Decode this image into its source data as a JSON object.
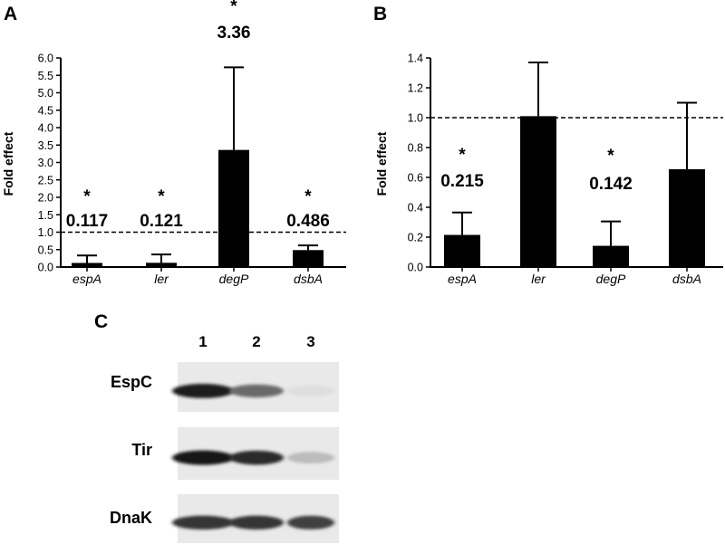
{
  "panels": {
    "a": {
      "letter": "A"
    },
    "b": {
      "letter": "B"
    },
    "c": {
      "letter": "C"
    }
  },
  "chart_data": [
    {
      "type": "bar",
      "panel": "A",
      "ylabel": "Fold effect",
      "categories": [
        "espA",
        "ler",
        "degP",
        "dsbA"
      ],
      "values": [
        0.117,
        0.121,
        3.36,
        0.486
      ],
      "error_upper": [
        0.33,
        0.36,
        5.73,
        0.62
      ],
      "ylim": [
        0,
        6.0
      ],
      "yticks": [
        "0.0",
        "0.5",
        "1.0",
        "1.5",
        "2.0",
        "2.5",
        "3.0",
        "3.5",
        "4.0",
        "4.5",
        "5.0",
        "5.5",
        "6.0"
      ],
      "reference_line": 1.0,
      "significance": [
        "*",
        "*",
        "*",
        "*"
      ],
      "value_labels": [
        "0.117",
        "0.121",
        "3.36",
        "0.486"
      ],
      "bar_color": "#000000"
    },
    {
      "type": "bar",
      "panel": "B",
      "ylabel": "Fold effect",
      "categories": [
        "espA",
        "ler",
        "degP",
        "dsbA"
      ],
      "values": [
        0.215,
        1.01,
        0.142,
        0.655
      ],
      "error_upper": [
        0.365,
        1.37,
        0.305,
        1.1
      ],
      "ylim": [
        0,
        1.4
      ],
      "yticks": [
        "0.0",
        "0.2",
        "0.4",
        "0.6",
        "0.8",
        "1.0",
        "1.2",
        "1.4"
      ],
      "reference_line": 1.0,
      "significance": [
        "*",
        "",
        "*",
        ""
      ],
      "value_labels": [
        "0.215",
        "",
        "0.142",
        ""
      ],
      "bar_color": "#000000"
    }
  ],
  "blot": {
    "lanes": [
      "1",
      "2",
      "3"
    ],
    "rows": [
      {
        "label": "EspC",
        "intensities": [
          0.95,
          0.6,
          0.06
        ]
      },
      {
        "label": "Tir",
        "intensities": [
          1.0,
          0.9,
          0.22
        ]
      },
      {
        "label": "DnaK",
        "intensities": [
          0.85,
          0.85,
          0.8
        ]
      }
    ]
  }
}
